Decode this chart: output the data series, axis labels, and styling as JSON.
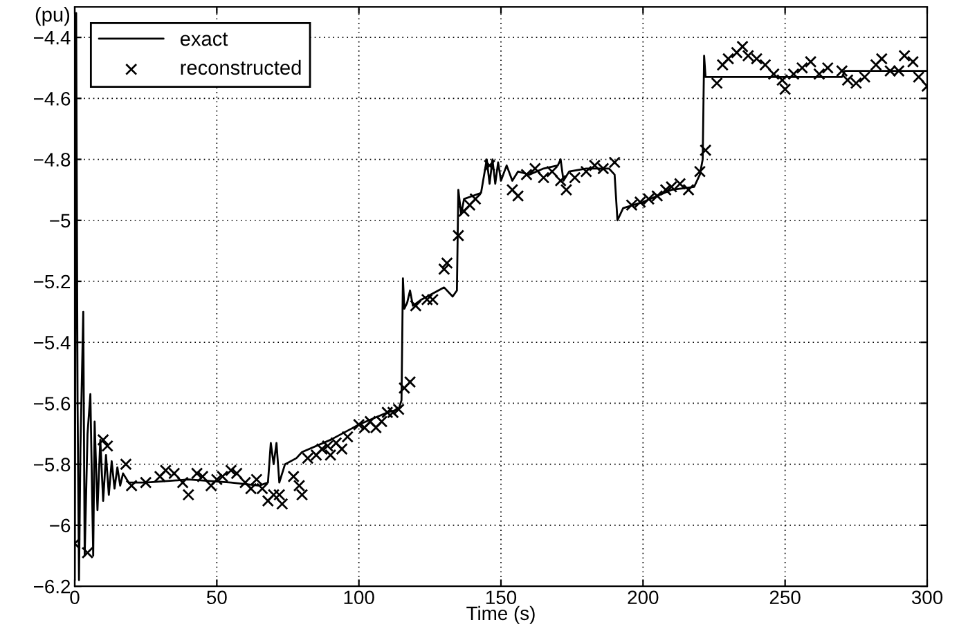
{
  "chart_data": {
    "type": "line",
    "xlabel": "Time (s)",
    "ylabel": "(pu)",
    "xlim": [
      0,
      300
    ],
    "ylim": [
      -6.2,
      -4.3
    ],
    "xticks": [
      0,
      50,
      100,
      150,
      200,
      250,
      300
    ],
    "yticks": [
      {
        "value": -6.2,
        "label": "−6.2"
      },
      {
        "value": -6,
        "label": "−6"
      },
      {
        "value": -5.8,
        "label": "−5.8"
      },
      {
        "value": -5.6,
        "label": "−5.6"
      },
      {
        "value": -5.4,
        "label": "−5.4"
      },
      {
        "value": -5.2,
        "label": "−5.2"
      },
      {
        "value": -5,
        "label": "−5"
      },
      {
        "value": -4.8,
        "label": "−4.8"
      },
      {
        "value": -4.6,
        "label": "−4.6"
      },
      {
        "value": -4.4,
        "label": "−4.4"
      }
    ],
    "grid": true,
    "legend": "top left",
    "series": [
      {
        "name": "exact",
        "color": "#000000",
        "marker": "none",
        "line_style": "solid",
        "x": [
          0,
          0.5,
          1,
          1.5,
          2,
          3,
          3.5,
          4.5,
          5.5,
          6.5,
          7,
          8,
          9,
          10,
          11,
          12,
          13,
          14,
          15,
          16,
          17,
          19,
          25,
          40,
          55,
          65,
          68,
          69,
          70,
          71,
          72,
          74,
          78,
          80,
          90,
          100,
          110,
          114,
          115,
          115.5,
          116,
          117,
          118,
          119,
          122,
          130,
          133,
          134.5,
          135,
          136,
          137,
          140,
          143,
          145,
          146,
          147,
          148,
          149,
          150,
          152,
          154,
          156,
          160,
          165,
          170,
          171,
          172,
          174,
          180,
          188,
          190,
          191,
          193,
          200,
          210,
          218,
          220,
          221,
          221.5,
          222,
          230,
          270,
          271,
          300
        ],
        "values": [
          -6.18,
          -4.32,
          -5.6,
          -6.18,
          -5.75,
          -5.3,
          -6.1,
          -5.7,
          -5.57,
          -6.1,
          -5.66,
          -5.95,
          -5.72,
          -5.92,
          -5.77,
          -5.9,
          -5.79,
          -5.88,
          -5.81,
          -5.87,
          -5.83,
          -5.86,
          -5.86,
          -5.85,
          -5.86,
          -5.87,
          -5.86,
          -5.73,
          -5.8,
          -5.73,
          -5.86,
          -5.8,
          -5.78,
          -5.76,
          -5.72,
          -5.67,
          -5.63,
          -5.62,
          -5.59,
          -5.19,
          -5.29,
          -5.27,
          -5.23,
          -5.28,
          -5.26,
          -5.22,
          -5.25,
          -5.23,
          -4.9,
          -4.98,
          -4.93,
          -4.92,
          -4.91,
          -4.8,
          -4.88,
          -4.8,
          -4.88,
          -4.81,
          -4.87,
          -4.82,
          -4.87,
          -4.84,
          -4.85,
          -4.83,
          -4.82,
          -4.8,
          -4.87,
          -4.84,
          -4.83,
          -4.83,
          -4.85,
          -5.0,
          -4.96,
          -4.94,
          -4.9,
          -4.89,
          -4.85,
          -4.8,
          -4.46,
          -4.53,
          -4.53,
          -4.53,
          -4.51,
          -4.51
        ]
      },
      {
        "name": "reconstructed",
        "type": "scatter",
        "color": "#000000",
        "marker": "cross",
        "x": [
          0,
          4.5,
          10,
          11.5,
          18,
          20,
          25,
          30,
          32,
          35,
          38,
          40,
          43,
          45,
          48,
          50,
          52,
          55,
          57,
          60,
          62,
          64,
          66,
          68,
          70,
          72,
          73,
          77,
          79,
          80,
          82,
          85,
          87,
          89,
          90,
          92,
          94,
          96,
          100,
          102,
          104,
          106,
          108,
          110,
          112,
          114,
          116,
          118,
          120,
          124,
          126,
          130,
          131,
          135,
          137,
          139,
          141,
          146,
          154,
          156,
          159,
          162,
          165,
          168,
          171,
          173,
          176,
          180,
          183,
          186,
          190,
          196,
          199,
          202,
          205,
          208,
          210,
          213,
          216,
          220,
          222,
          226,
          228,
          230,
          233,
          235,
          237,
          240,
          243,
          246,
          249,
          250,
          253,
          256,
          259,
          262,
          265,
          270,
          272,
          275,
          278,
          282,
          284,
          287,
          290,
          292,
          295,
          297,
          300
        ],
        "values": [
          -6.06,
          -6.09,
          -5.72,
          -5.74,
          -5.8,
          -5.87,
          -5.86,
          -5.84,
          -5.82,
          -5.83,
          -5.86,
          -5.9,
          -5.83,
          -5.84,
          -5.87,
          -5.85,
          -5.84,
          -5.82,
          -5.83,
          -5.86,
          -5.88,
          -5.85,
          -5.88,
          -5.92,
          -5.9,
          -5.9,
          -5.93,
          -5.84,
          -5.87,
          -5.9,
          -5.78,
          -5.77,
          -5.75,
          -5.74,
          -5.77,
          -5.73,
          -5.75,
          -5.71,
          -5.67,
          -5.68,
          -5.66,
          -5.68,
          -5.66,
          -5.63,
          -5.63,
          -5.62,
          -5.55,
          -5.53,
          -5.28,
          -5.26,
          -5.26,
          -5.16,
          -5.14,
          -5.05,
          -4.97,
          -4.95,
          -4.93,
          -4.82,
          -4.9,
          -4.92,
          -4.85,
          -4.83,
          -4.86,
          -4.84,
          -4.87,
          -4.9,
          -4.86,
          -4.84,
          -4.82,
          -4.83,
          -4.81,
          -4.95,
          -4.94,
          -4.93,
          -4.92,
          -4.9,
          -4.89,
          -4.88,
          -4.9,
          -4.84,
          -4.77,
          -4.55,
          -4.49,
          -4.47,
          -4.45,
          -4.43,
          -4.46,
          -4.47,
          -4.49,
          -4.52,
          -4.54,
          -4.57,
          -4.52,
          -4.5,
          -4.48,
          -4.52,
          -4.5,
          -4.51,
          -4.54,
          -4.55,
          -4.53,
          -4.49,
          -4.47,
          -4.51,
          -4.51,
          -4.46,
          -4.48,
          -4.53,
          -4.56
        ]
      }
    ]
  }
}
